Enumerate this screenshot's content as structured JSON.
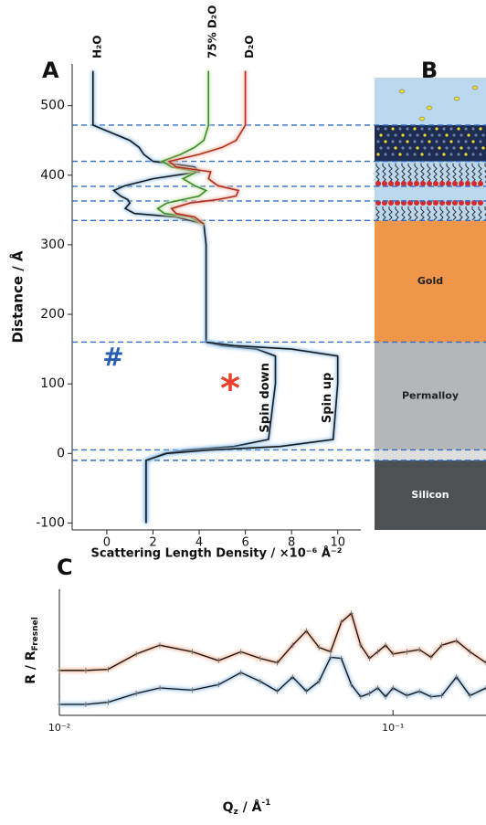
{
  "chart_data": [
    {
      "type": "line",
      "panel": "A",
      "orientation": "vertical",
      "x_label": "Scattering Length Density / ×10⁻⁶ Å⁻²",
      "y_label": "Distance / Å",
      "xlim": [
        -1.5,
        11
      ],
      "xticks": [
        0,
        2,
        4,
        6,
        8,
        10
      ],
      "ylim": [
        -110,
        560
      ],
      "yticks": [
        -100,
        0,
        100,
        200,
        300,
        400,
        500
      ],
      "y": [
        -100,
        -10,
        0,
        5,
        10,
        20,
        100,
        140,
        150,
        155,
        160,
        200,
        300,
        330,
        340,
        345,
        352,
        360,
        365,
        370,
        378,
        385,
        395,
        405,
        412,
        420,
        430,
        440,
        450,
        472,
        490,
        550
      ],
      "series": [
        {
          "name": "H₂O",
          "color": "#1a1a1a",
          "halo": "#8fc0ea",
          "values": [
            null,
            null,
            null,
            null,
            null,
            null,
            null,
            null,
            null,
            null,
            4.3,
            4.3,
            4.3,
            4.2,
            3.0,
            1.2,
            0.8,
            1.0,
            0.9,
            0.6,
            0.3,
            0.8,
            2.0,
            4.0,
            3.8,
            2.0,
            1.6,
            1.4,
            1.0,
            -0.6,
            -0.6,
            -0.6
          ]
        },
        {
          "name": "75% D₂O",
          "color": "#3d8a2e",
          "halo": "#c8e6a8",
          "values": [
            null,
            null,
            null,
            null,
            null,
            null,
            null,
            null,
            null,
            null,
            null,
            null,
            null,
            4.2,
            3.6,
            2.5,
            2.2,
            2.6,
            3.3,
            4.0,
            4.3,
            3.8,
            3.3,
            3.9,
            2.8,
            2.4,
            3.2,
            3.8,
            4.2,
            4.4,
            4.4,
            4.4
          ]
        },
        {
          "name": "D₂O",
          "color": "#b03020",
          "halo": "#f4b8a8",
          "values": [
            null,
            null,
            null,
            null,
            null,
            null,
            null,
            null,
            null,
            null,
            null,
            null,
            null,
            4.2,
            3.8,
            3.0,
            2.8,
            3.6,
            4.8,
            5.6,
            5.7,
            4.8,
            4.4,
            4.5,
            3.0,
            2.7,
            4.0,
            5.0,
            5.6,
            6.0,
            6.0,
            6.0
          ]
        },
        {
          "name": "Spin down",
          "color": "#1a1a1a",
          "halo": "#8fc0ea",
          "values": [
            1.7,
            1.7,
            2.5,
            3.5,
            5.5,
            7.0,
            7.3,
            7.3,
            6.5,
            5.0,
            4.3,
            null,
            null,
            null,
            null,
            null,
            null,
            null,
            null,
            null,
            null,
            null,
            null,
            null,
            null,
            null,
            null,
            null,
            null,
            null,
            null,
            null
          ]
        },
        {
          "name": "Spin up",
          "color": "#1a1a1a",
          "halo": "#8fc0ea",
          "values": [
            1.7,
            1.7,
            2.6,
            4.5,
            7.5,
            9.8,
            10.0,
            10.0,
            8.0,
            5.5,
            4.3,
            null,
            null,
            null,
            null,
            null,
            null,
            null,
            null,
            null,
            null,
            null,
            null,
            null,
            null,
            null,
            null,
            null,
            null,
            null,
            null,
            null
          ]
        }
      ],
      "reference_lines": [
        472,
        420,
        384,
        363,
        335,
        160,
        5,
        -10
      ],
      "reference_color": "#2f6cc8",
      "annotations": [
        {
          "text": "#",
          "color": "#2a5fb0"
        },
        {
          "text": "*",
          "color": "#e8402a"
        }
      ]
    },
    {
      "type": "line",
      "panel": "C",
      "xscale": "log",
      "x_label": "Q",
      "x_label_sub": "z",
      "x_label_unit": " / Å",
      "x_label_sup": "-1",
      "y_label": "R / R",
      "y_label_sub": "Fresnel",
      "xlim": [
        0.01,
        0.19
      ],
      "xticks": [
        {
          "value": 0.01,
          "label": "10⁻²"
        },
        {
          "value": 0.1,
          "label": "10⁻¹"
        }
      ],
      "ylim": [
        -1,
        10.5
      ],
      "x": [
        0.01,
        0.012,
        0.014,
        0.017,
        0.02,
        0.025,
        0.03,
        0.035,
        0.04,
        0.045,
        0.05,
        0.055,
        0.06,
        0.065,
        0.07,
        0.075,
        0.08,
        0.085,
        0.09,
        0.095,
        0.1,
        0.11,
        0.12,
        0.13,
        0.14,
        0.155,
        0.17,
        0.19
      ],
      "series": [
        {
          "color": "#111111",
          "halo": "#f0a07a",
          "values": [
            3.1,
            3.1,
            3.2,
            4.6,
            5.4,
            4.8,
            4.0,
            4.8,
            4.2,
            3.8,
            5.4,
            6.7,
            5.2,
            4.8,
            7.5,
            8.3,
            5.4,
            4.2,
            4.8,
            5.4,
            4.6,
            4.8,
            5.0,
            4.3,
            5.4,
            5.8,
            4.8,
            3.8
          ]
        },
        {
          "color": "#111111",
          "halo": "#7fb2e0",
          "values": [
            0,
            0,
            0.2,
            1.0,
            1.5,
            1.3,
            1.8,
            2.9,
            2.1,
            1.2,
            2.5,
            1.2,
            2.1,
            4.3,
            4.2,
            1.8,
            0.7,
            1.0,
            1.5,
            0.7,
            1.5,
            0.8,
            1.2,
            0.7,
            0.8,
            2.5,
            0.8,
            1.5
          ]
        }
      ]
    }
  ],
  "panel_b": {
    "label": "B",
    "layers": [
      "Gold",
      "Permalloy",
      "Silicon"
    ]
  }
}
